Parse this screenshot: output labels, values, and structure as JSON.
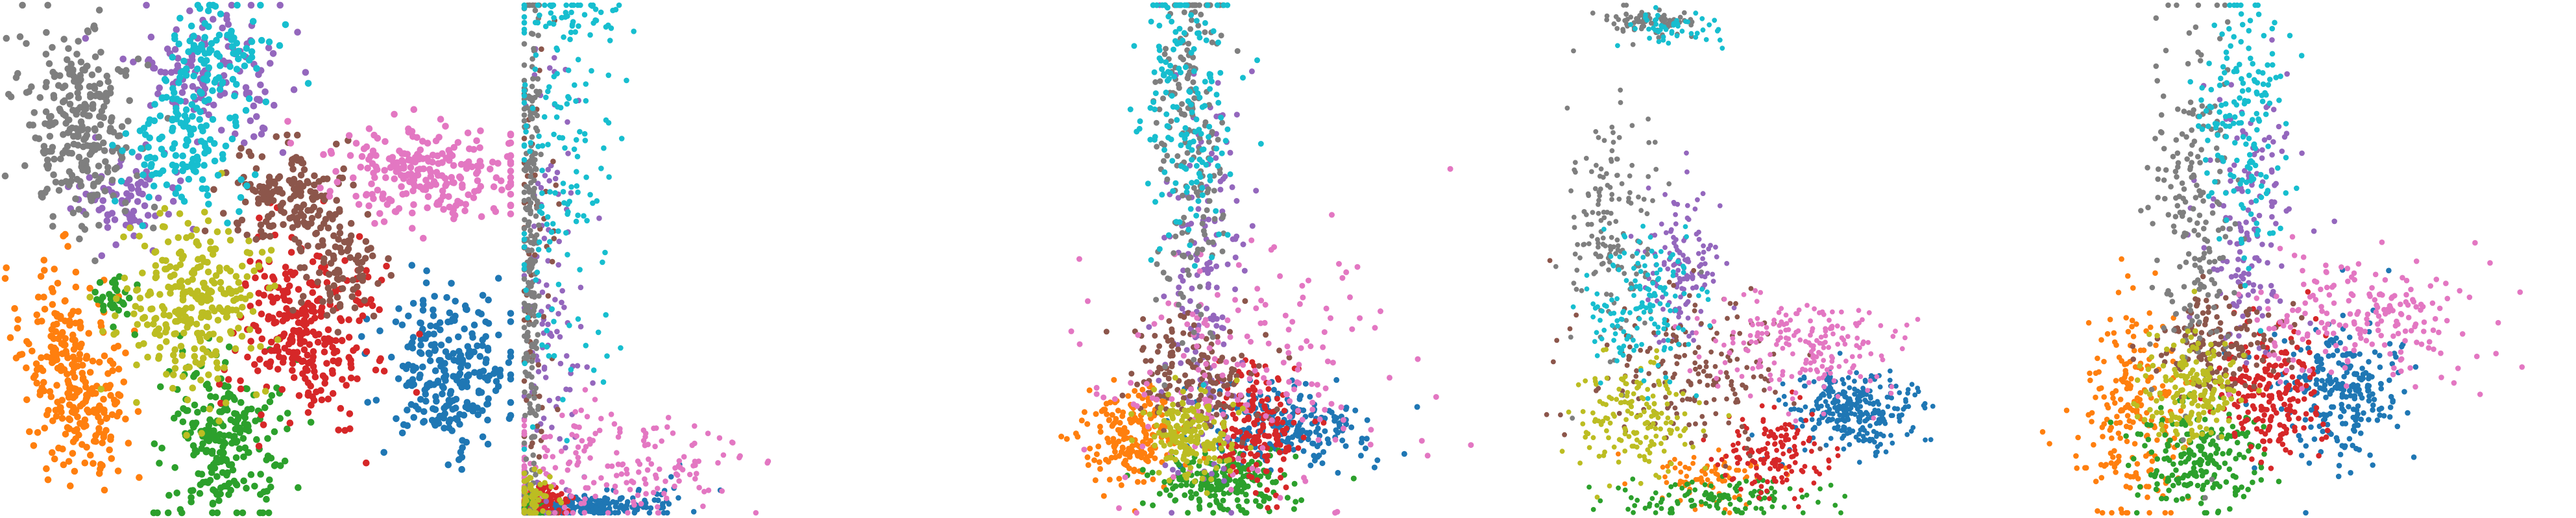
{
  "figure": {
    "palette": [
      "#1f77b4",
      "#ff7f0e",
      "#2ca02c",
      "#d62728",
      "#9467bd",
      "#8c564b",
      "#e377c2",
      "#7f7f7f",
      "#bcbd22",
      "#17becf"
    ]
  },
  "chart_data": [
    {
      "type": "scatter",
      "title": "",
      "xlabel": "",
      "ylabel": "",
      "xlim": [
        0,
        100
      ],
      "ylim": [
        0,
        100
      ],
      "grid": false,
      "axes": "hidden",
      "legend": "none",
      "point_radius": 0.75,
      "series": [
        {
          "class": 0,
          "color": "#1f77b4",
          "clusters": [
            {
              "cx": 87.5,
              "cy": 28,
              "sx": 6.5,
              "sy": 7.5,
              "n": 260
            }
          ]
        },
        {
          "class": 1,
          "color": "#ff7f0e",
          "clusters": [
            {
              "cx": 11,
              "cy": 31,
              "sx": 5,
              "sy": 9,
              "n": 170
            },
            {
              "cx": 17,
              "cy": 19,
              "sx": 4,
              "sy": 6,
              "n": 110
            }
          ]
        },
        {
          "class": 2,
          "color": "#2ca02c",
          "clusters": [
            {
              "cx": 43,
              "cy": 14,
              "sx": 6,
              "sy": 8,
              "n": 240
            },
            {
              "cx": 21,
              "cy": 42,
              "sx": 2,
              "sy": 3,
              "n": 30
            }
          ]
        },
        {
          "class": 3,
          "color": "#d62728",
          "clusters": [
            {
              "cx": 59.5,
              "cy": 36,
              "sx": 7,
              "sy": 9,
              "n": 280
            }
          ]
        },
        {
          "class": 4,
          "color": "#9467bd",
          "clusters": [
            {
              "cx": 41,
              "cy": 86,
              "sx": 8,
              "sy": 7,
              "n": 130
            },
            {
              "cx": 24,
              "cy": 62,
              "sx": 5,
              "sy": 5,
              "n": 80
            }
          ]
        },
        {
          "class": 5,
          "color": "#8c564b",
          "clusters": [
            {
              "cx": 56,
              "cy": 62,
              "sx": 6,
              "sy": 5,
              "n": 150
            },
            {
              "cx": 67,
              "cy": 48,
              "sx": 5,
              "sy": 6,
              "n": 90
            }
          ]
        },
        {
          "class": 6,
          "color": "#e377c2",
          "clusters": [
            {
              "cx": 83,
              "cy": 67,
              "sx": 10,
              "sy": 4.5,
              "n": 240
            }
          ]
        },
        {
          "class": 7,
          "color": "#7f7f7f",
          "clusters": [
            {
              "cx": 15,
              "cy": 76,
              "sx": 5.5,
              "sy": 10,
              "n": 270
            }
          ]
        },
        {
          "class": 8,
          "color": "#bcbd22",
          "clusters": [
            {
              "cx": 38,
              "cy": 40,
              "sx": 7,
              "sy": 8,
              "n": 280
            }
          ]
        },
        {
          "class": 9,
          "color": "#17becf",
          "clusters": [
            {
              "cx": 35,
              "cy": 73,
              "sx": 6,
              "sy": 7,
              "n": 140
            },
            {
              "cx": 43,
              "cy": 91,
              "sx": 5,
              "sy": 5,
              "n": 90
            }
          ]
        }
      ]
    },
    {
      "type": "scatter",
      "title": "",
      "xlabel": "",
      "ylabel": "",
      "xlim": [
        0,
        100
      ],
      "ylim": [
        0,
        100
      ],
      "grid": false,
      "axes": "hidden",
      "legend": "none",
      "point_radius": 0.62,
      "series": [
        {
          "class": 0,
          "color": "#1f77b4",
          "clusters": [
            {
              "cx": 10,
              "cy": 1.2,
              "sx": 8,
              "sy": 1,
              "n": 210
            },
            {
              "cx": 28,
              "cy": 4,
              "sx": 6,
              "sy": 2,
              "n": 25
            }
          ]
        },
        {
          "class": 1,
          "color": "#ff7f0e",
          "clusters": [
            {
              "cx": 1.5,
              "cy": 1.5,
              "sx": 1.2,
              "sy": 1.2,
              "n": 80
            }
          ]
        },
        {
          "class": 2,
          "color": "#2ca02c",
          "clusters": [
            {
              "cx": 2,
              "cy": 1.2,
              "sx": 1.5,
              "sy": 1,
              "n": 80
            }
          ]
        },
        {
          "class": 3,
          "color": "#d62728",
          "clusters": [
            {
              "cx": 4,
              "cy": 2,
              "sx": 2.5,
              "sy": 1.5,
              "n": 70
            }
          ]
        },
        {
          "class": 4,
          "color": "#9467bd",
          "clusters": [
            {
              "cx": 5,
              "cy": 45,
              "sx": 3.5,
              "sy": 25,
              "n": 110
            }
          ]
        },
        {
          "class": 5,
          "color": "#8c564b",
          "clusters": [
            {
              "cx": 2.5,
              "cy": 35,
              "sx": 2.5,
              "sy": 25,
              "n": 70
            }
          ]
        },
        {
          "class": 6,
          "color": "#e377c2",
          "clusters": [
            {
              "cx": 16,
              "cy": 9,
              "sx": 14,
              "sy": 6,
              "n": 190
            }
          ]
        },
        {
          "class": 7,
          "color": "#7f7f7f",
          "clusters": [
            {
              "cx": 1.3,
              "cy": 52,
              "sx": 1,
              "sy": 30,
              "n": 240
            }
          ]
        },
        {
          "class": 8,
          "color": "#bcbd22",
          "clusters": [
            {
              "cx": 2,
              "cy": 4,
              "sx": 2,
              "sy": 3,
              "n": 60
            }
          ]
        },
        {
          "class": 9,
          "color": "#17becf",
          "clusters": [
            {
              "cx": 7,
              "cy": 68,
              "sx": 6,
              "sy": 20,
              "n": 150
            },
            {
              "cx": 10,
              "cy": 97,
              "sx": 6,
              "sy": 2,
              "n": 40
            }
          ]
        }
      ]
    },
    {
      "type": "scatter",
      "title": "",
      "xlabel": "",
      "ylabel": "",
      "xlim": [
        0,
        100
      ],
      "ylim": [
        0,
        100
      ],
      "grid": false,
      "axes": "hidden",
      "legend": "none",
      "point_radius": 0.65,
      "series": [
        {
          "class": 0,
          "color": "#1f77b4",
          "clusters": [
            {
              "cx": 55,
              "cy": 17,
              "sx": 9,
              "sy": 4,
              "n": 220
            }
          ]
        },
        {
          "class": 1,
          "color": "#ff7f0e",
          "clusters": [
            {
              "cx": 26,
              "cy": 15,
              "sx": 5,
              "sy": 5,
              "n": 200
            }
          ]
        },
        {
          "class": 2,
          "color": "#2ca02c",
          "clusters": [
            {
              "cx": 43,
              "cy": 6,
              "sx": 7,
              "sy": 3,
              "n": 200
            }
          ]
        },
        {
          "class": 3,
          "color": "#d62728",
          "clusters": [
            {
              "cx": 50,
              "cy": 17,
              "sx": 4,
              "sy": 6,
              "n": 160
            }
          ]
        },
        {
          "class": 4,
          "color": "#9467bd",
          "clusters": [
            {
              "cx": 40,
              "cy": 44,
              "sx": 4,
              "sy": 22,
              "n": 150
            }
          ]
        },
        {
          "class": 5,
          "color": "#8c564b",
          "clusters": [
            {
              "cx": 38,
              "cy": 28,
              "sx": 6,
              "sy": 6,
              "n": 150
            }
          ]
        },
        {
          "class": 6,
          "color": "#e377c2",
          "clusters": [
            {
              "cx": 50,
              "cy": 28,
              "sx": 15,
              "sy": 12,
              "n": 180
            }
          ]
        },
        {
          "class": 7,
          "color": "#7f7f7f",
          "clusters": [
            {
              "cx": 37,
              "cy": 72,
              "sx": 3.5,
              "sy": 22,
              "n": 190
            }
          ]
        },
        {
          "class": 8,
          "color": "#bcbd22",
          "clusters": [
            {
              "cx": 37,
              "cy": 15,
              "sx": 4,
              "sy": 4,
              "n": 170
            }
          ]
        },
        {
          "class": 9,
          "color": "#17becf",
          "clusters": [
            {
              "cx": 37,
              "cy": 80,
              "sx": 5,
              "sy": 15,
              "n": 170
            }
          ]
        }
      ]
    },
    {
      "type": "scatter",
      "title": "",
      "xlabel": "",
      "ylabel": "",
      "xlim": [
        0,
        100
      ],
      "ylim": [
        0,
        100
      ],
      "grid": false,
      "axes": "hidden",
      "legend": "none",
      "point_radius": 0.55,
      "series": [
        {
          "class": 0,
          "color": "#1f77b4",
          "clusters": [
            {
              "cx": 68,
              "cy": 20,
              "sx": 6,
              "sy": 4,
              "n": 300
            }
          ]
        },
        {
          "class": 1,
          "color": "#ff7f0e",
          "clusters": [
            {
              "cx": 40,
              "cy": 7,
              "sx": 6,
              "sy": 2.5,
              "n": 80
            }
          ]
        },
        {
          "class": 2,
          "color": "#2ca02c",
          "clusters": [
            {
              "cx": 40,
              "cy": 3,
              "sx": 10,
              "sy": 2,
              "n": 120
            }
          ]
        },
        {
          "class": 3,
          "color": "#d62728",
          "clusters": [
            {
              "cx": 52,
              "cy": 12,
              "sx": 5,
              "sy": 5,
              "n": 140
            }
          ]
        },
        {
          "class": 4,
          "color": "#9467bd",
          "clusters": [
            {
              "cx": 34,
              "cy": 48,
              "sx": 3.5,
              "sy": 8,
              "n": 130
            }
          ]
        },
        {
          "class": 5,
          "color": "#8c564b",
          "clusters": [
            {
              "cx": 36,
              "cy": 28,
              "sx": 10,
              "sy": 8,
              "n": 180
            }
          ]
        },
        {
          "class": 6,
          "color": "#e377c2",
          "clusters": [
            {
              "cx": 60,
              "cy": 33,
              "sx": 10,
              "sy": 5,
              "n": 200
            }
          ]
        },
        {
          "class": 7,
          "color": "#7f7f7f",
          "clusters": [
            {
              "cx": 20,
              "cy": 58,
              "sx": 5,
              "sy": 12,
              "n": 160
            },
            {
              "cx": 27,
              "cy": 97,
              "sx": 5,
              "sy": 1.5,
              "n": 70
            }
          ]
        },
        {
          "class": 8,
          "color": "#bcbd22",
          "clusters": [
            {
              "cx": 25,
              "cy": 18,
              "sx": 6,
              "sy": 6,
              "n": 160
            }
          ]
        },
        {
          "class": 9,
          "color": "#17becf",
          "clusters": [
            {
              "cx": 26,
              "cy": 40,
              "sx": 6,
              "sy": 7,
              "n": 150
            },
            {
              "cx": 33,
              "cy": 96,
              "sx": 5,
              "sy": 2,
              "n": 50
            }
          ]
        }
      ]
    },
    {
      "type": "scatter",
      "title": "",
      "xlabel": "",
      "ylabel": "",
      "xlim": [
        0,
        100
      ],
      "ylim": [
        0,
        100
      ],
      "grid": false,
      "axes": "hidden",
      "legend": "none",
      "point_radius": 0.62,
      "series": [
        {
          "class": 0,
          "color": "#1f77b4",
          "clusters": [
            {
              "cx": 57,
              "cy": 24,
              "sx": 6,
              "sy": 7,
              "n": 240
            }
          ]
        },
        {
          "class": 1,
          "color": "#ff7f0e",
          "clusters": [
            {
              "cx": 17,
              "cy": 20,
              "sx": 5,
              "sy": 10,
              "n": 220
            }
          ]
        },
        {
          "class": 2,
          "color": "#2ca02c",
          "clusters": [
            {
              "cx": 30,
              "cy": 11,
              "sx": 6,
              "sy": 5,
              "n": 200
            }
          ]
        },
        {
          "class": 3,
          "color": "#d62728",
          "clusters": [
            {
              "cx": 43,
              "cy": 24,
              "sx": 5,
              "sy": 6,
              "n": 200
            }
          ]
        },
        {
          "class": 4,
          "color": "#9467bd",
          "clusters": [
            {
              "cx": 39,
              "cy": 58,
              "sx": 4,
              "sy": 14,
              "n": 150
            }
          ]
        },
        {
          "class": 5,
          "color": "#8c564b",
          "clusters": [
            {
              "cx": 33,
              "cy": 33,
              "sx": 6,
              "sy": 5,
              "n": 160
            }
          ]
        },
        {
          "class": 6,
          "color": "#e377c2",
          "clusters": [
            {
              "cx": 62,
              "cy": 38,
              "sx": 12,
              "sy": 6,
              "n": 200
            }
          ]
        },
        {
          "class": 7,
          "color": "#7f7f7f",
          "clusters": [
            {
              "cx": 29,
              "cy": 60,
              "sx": 4.5,
              "sy": 20,
              "n": 200
            }
          ]
        },
        {
          "class": 8,
          "color": "#bcbd22",
          "clusters": [
            {
              "cx": 28,
              "cy": 24,
              "sx": 5,
              "sy": 5,
              "n": 170
            }
          ]
        },
        {
          "class": 9,
          "color": "#17becf",
          "clusters": [
            {
              "cx": 38,
              "cy": 76,
              "sx": 4,
              "sy": 14,
              "n": 170
            }
          ]
        }
      ]
    }
  ]
}
